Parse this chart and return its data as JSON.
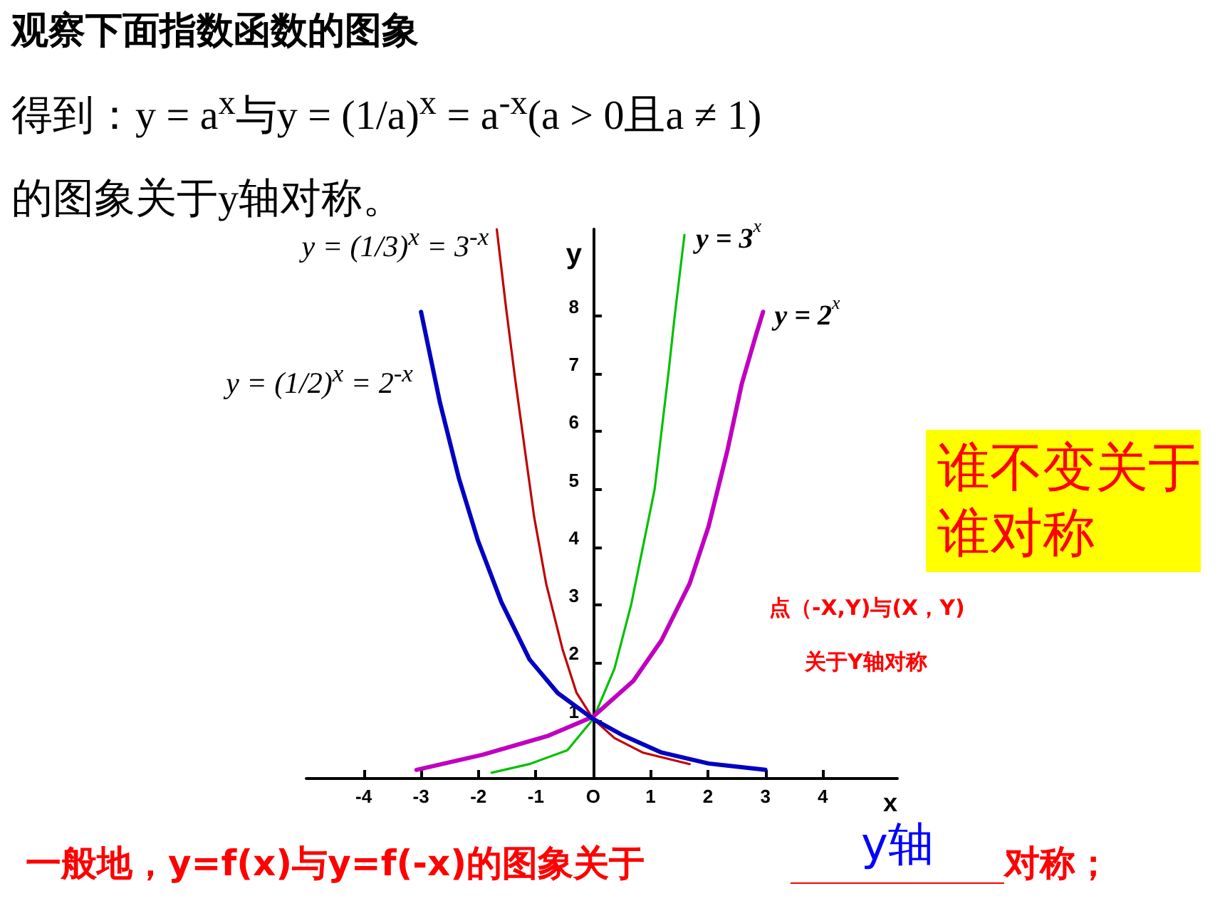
{
  "chart_data": {
    "type": "line",
    "title": "观察下面指数函数的图象",
    "subtitle": "得到：y = a$^{x}$与y = (1/a)$^{x}$ = a$^{-x}$(a > 0且a ≠ 1)的图象关于y轴对称。",
    "xlabel": "x",
    "ylabel": "y",
    "xlim": [
      -5,
      5.3
    ],
    "ylim": [
      0,
      9.5
    ],
    "xticks": [
      -4,
      -3,
      -2,
      -1,
      {
        "value": 0,
        "label": "O"
      },
      1,
      2,
      3,
      4
    ],
    "yticks": [
      1,
      2,
      3,
      4,
      5,
      6,
      7,
      8
    ],
    "grid": false,
    "marker": "none",
    "line_style": "solid",
    "series": [
      {
        "name": "y = 3$^{x}$",
        "color": "#00c000",
        "x": [
          -1.77,
          -1.11,
          -0.45,
          0,
          0.37,
          0.66,
          1.07,
          1.31,
          1.42,
          1.59
        ],
        "values": [
          0.1,
          0.25,
          0.49,
          1.03,
          1.9,
          3,
          5,
          7,
          8,
          9.4
        ]
      },
      {
        "name": "y = 2$^{x}$",
        "color": "#c000c0",
        "x": [
          -3.08,
          -1.93,
          -0.78,
          0,
          0.7,
          1.19,
          1.68,
          2.01,
          2.34,
          2.59,
          2.83,
          2.96
        ],
        "values": [
          0.15,
          0.41,
          0.74,
          1.07,
          1.69,
          2.39,
          3.37,
          4.36,
          5.68,
          6.83,
          7.65,
          8.07
        ]
      },
      {
        "name": "y = (1/3)$^{x}$ = 3$^{-x}$",
        "color": "#c00000",
        "x": [
          -1.68,
          -1.52,
          -1.36,
          -1.19,
          -1.03,
          -0.82,
          -0.53,
          -0.29,
          0,
          0.37,
          0.86,
          1.68
        ],
        "values": [
          9.5,
          8.15,
          6.91,
          5.68,
          4.53,
          3.37,
          2.22,
          1.48,
          1.03,
          0.7,
          0.45,
          0.25
        ]
      },
      {
        "name": "y = (1/2)$^{x}$ = 2$^{-x}$",
        "color": "#0000c0",
        "x": [
          -3,
          -2.67,
          -2.34,
          -2.01,
          -1.6,
          -1.11,
          -0.62,
          0,
          0.53,
          1.19,
          2.01,
          3
        ],
        "values": [
          8.07,
          6.5,
          5.19,
          4.12,
          3.05,
          2.06,
          1.48,
          1.03,
          0.74,
          0.45,
          0.26,
          0.15
        ]
      }
    ],
    "annotations": [
      "谁不变关于谁对称",
      "点（-X,Y)与(X，Y)",
      "关于Y轴对称",
      "一般地，y=f(x)与y=f(-x)的图象关于",
      "y轴",
      "对称；"
    ]
  }
}
